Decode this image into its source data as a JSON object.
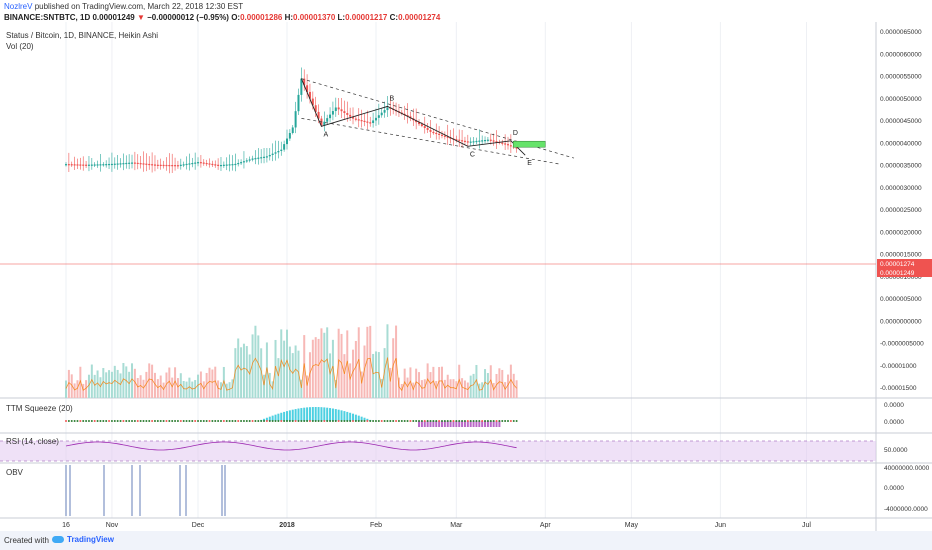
{
  "header": {
    "author": "NozlreV",
    "published": "published on TradingView.com, March 22, 2018 12:30 EST",
    "symbol": "BINANCE:SNTBTC, 1D",
    "last": "0.00001249",
    "change_arrow": "▼",
    "change": "−0.00000012 (−0.95%)",
    "o_label": "O:",
    "o_value": "0.00001286",
    "h_label": "H:",
    "h_value": "0.00001370",
    "l_label": "L:",
    "l_value": "0.00001217",
    "c_label": "C:",
    "c_value": "0.00001274"
  },
  "legend": {
    "title": "Status / Bitcoin, 1D, BINANCE, Heikin Ashi",
    "vol": "Vol (20)",
    "ttm": "TTM Squeeze (20)",
    "rsi": "RSI (14, close)",
    "obv": "OBV"
  },
  "footer": {
    "created": "Created with",
    "brand": "TradingView"
  },
  "colors": {
    "up": "#26a69a",
    "down": "#ef5350",
    "accent": "#2962ff",
    "rsi": "#9c27b0",
    "obv": "#3f5fa8"
  },
  "chart_data": {
    "type": "line",
    "style": "heikin-ashi candlestick with wedge pattern annotation",
    "x_ticks": [
      "16",
      "Nov",
      "Dec",
      "2018",
      "Feb",
      "Mar",
      "Apr",
      "May",
      "Jun",
      "Jul"
    ],
    "price_axis": {
      "ticks": [
        "0.0000065000",
        "0.0000060000",
        "0.0000055000",
        "0.0000050000",
        "0.0000045000",
        "0.0000040000",
        "0.0000035000",
        "0.0000030000",
        "0.0000025000",
        "0.0000020000",
        "0.0000015000",
        "0.0000010000",
        "0.0000005000",
        "0.0000000000",
        "-0.0000005000",
        "-0.00001000",
        "-0.00001500"
      ],
      "last_price_labels": [
        "0.00001274",
        "0.00001249"
      ]
    },
    "price_series": [
      {
        "x": "Oct 16",
        "y": 5.5e-06
      },
      {
        "x": "Oct 23",
        "y": 5.2e-06
      },
      {
        "x": "Nov 1",
        "y": 5.6e-06
      },
      {
        "x": "Nov 8",
        "y": 6.2e-06
      },
      {
        "x": "Nov 16",
        "y": 5.2e-06
      },
      {
        "x": "Nov 24",
        "y": 5e-06
      },
      {
        "x": "Dec 1",
        "y": 6.4e-06
      },
      {
        "x": "Dec 8",
        "y": 5e-06
      },
      {
        "x": "Dec 14",
        "y": 5.6e-06
      },
      {
        "x": "Dec 20",
        "y": 8e-06
      },
      {
        "x": "Dec 25",
        "y": 9e-06
      },
      {
        "x": "Dec 30",
        "y": 1.2e-05
      },
      {
        "x": "Jan 3",
        "y": 2.2e-05
      },
      {
        "x": "Jan 6",
        "y": 4.4e-05
      },
      {
        "x": "Jan 10",
        "y": 3.2e-05
      },
      {
        "x": "Jan 13",
        "y": 2.3e-05
      },
      {
        "x": "Jan 18",
        "y": 3.1e-05
      },
      {
        "x": "Jan 24",
        "y": 2.6e-05
      },
      {
        "x": "Jan 30",
        "y": 2.4e-05
      },
      {
        "x": "Feb 5",
        "y": 3.1e-05
      },
      {
        "x": "Feb 12",
        "y": 2.7e-05
      },
      {
        "x": "Feb 20",
        "y": 2e-05
      },
      {
        "x": "Feb 27",
        "y": 1.7e-05
      },
      {
        "x": "Mar 5",
        "y": 1.55e-05
      },
      {
        "x": "Mar 12",
        "y": 1.65e-05
      },
      {
        "x": "Mar 18",
        "y": 1.45e-05
      },
      {
        "x": "Mar 22",
        "y": 1.249e-05
      }
    ],
    "pattern": [
      {
        "label": "A",
        "x": "Jan 13",
        "y": 2.25e-05
      },
      {
        "label": "B",
        "x": "Feb 5",
        "y": 3.15e-05
      },
      {
        "label": "C",
        "x": "Mar 5",
        "y": 1.35e-05
      },
      {
        "label": "D",
        "x": "Mar 20",
        "y": 1.6e-05
      },
      {
        "label": "E",
        "x": "Mar 25",
        "y": 9.5e-06
      }
    ],
    "pattern_start": {
      "x": "Jan 6",
      "y": 4.4e-05
    },
    "volume_axis": {
      "ticks": [
        "0.0000",
        "0.0000"
      ]
    },
    "ttm_axis": {
      "ticks": [
        "0.0000",
        "0.0000"
      ]
    },
    "rsi_axis": {
      "ticks": [
        "50.0000"
      ]
    },
    "obv_axis": {
      "ticks": [
        "40000000.0000",
        "0.0000",
        "-4000000.0000"
      ]
    }
  }
}
